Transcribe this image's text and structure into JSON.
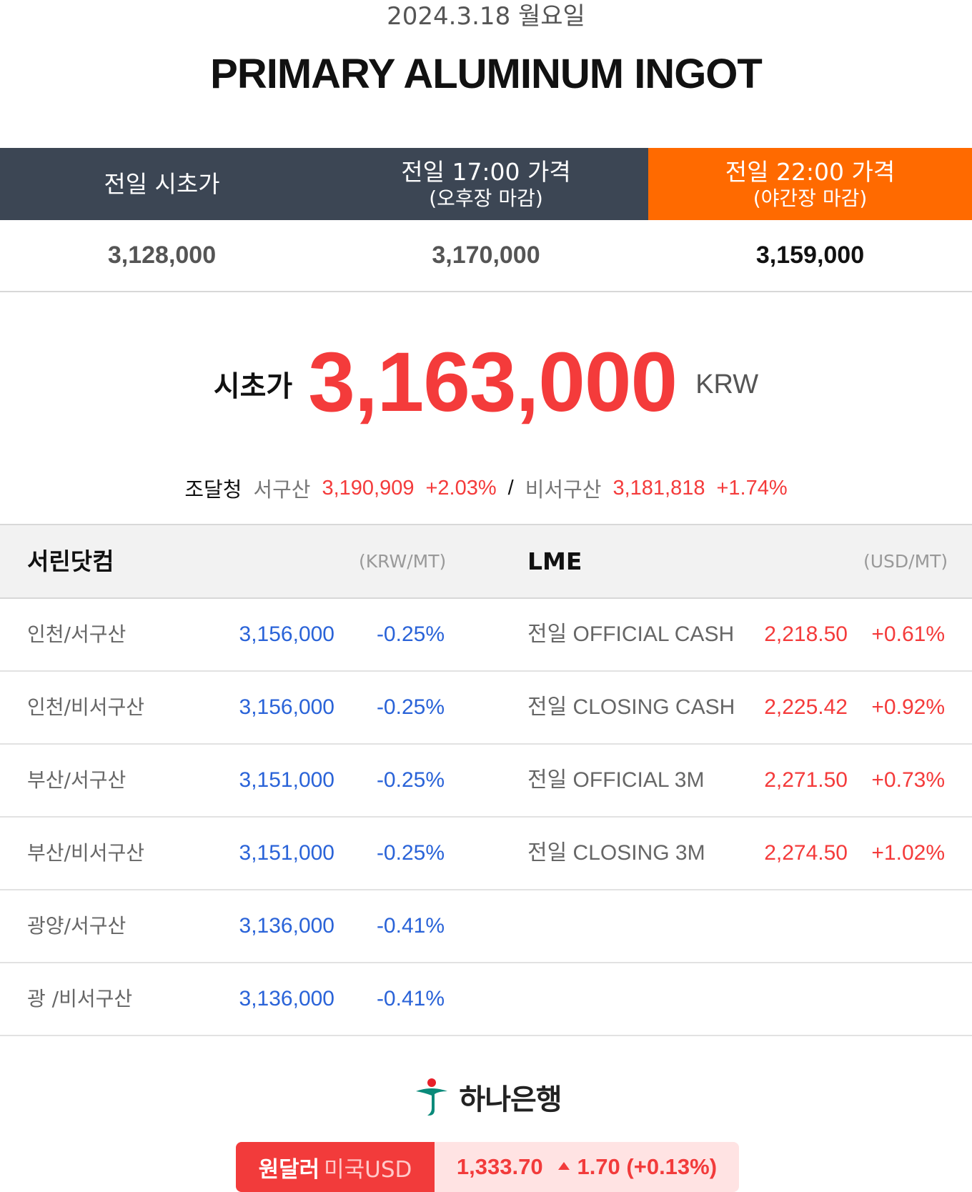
{
  "header": {
    "date": "2024.3.18 월요일",
    "title": "PRIMARY ALUMINUM INGOT"
  },
  "columns": [
    {
      "line1": "전일 시초가",
      "line2": "",
      "price": "3,128,000"
    },
    {
      "line1": "전일 17:00 가격",
      "line2": "(오후장 마감)",
      "price": "3,170,000"
    },
    {
      "line1": "전일 22:00 가격",
      "line2": "(야간장 마감)",
      "price": "3,159,000"
    }
  ],
  "main": {
    "label": "시초가",
    "value": "3,163,000",
    "unit": "KRW"
  },
  "procurement": {
    "label": "조달청",
    "item1_name": "서구산",
    "item1_price": "3,190,909",
    "item1_change": "+2.03%",
    "separator": "/",
    "item2_name": "비서구산",
    "item2_price": "3,181,818",
    "item2_change": "+1.74%"
  },
  "table": {
    "left_title": "서린닷컴",
    "left_unit": "(KRW/MT)",
    "right_title": "LME",
    "right_unit": "(USD/MT)",
    "left_rows": [
      {
        "label": "인천/서구산",
        "price": "3,156,000",
        "change": "-0.25%"
      },
      {
        "label": "인천/비서구산",
        "price": "3,156,000",
        "change": "-0.25%"
      },
      {
        "label": "부산/서구산",
        "price": "3,151,000",
        "change": "-0.25%"
      },
      {
        "label": "부산/비서구산",
        "price": "3,151,000",
        "change": "-0.25%"
      },
      {
        "label": "광양/서구산",
        "price": "3,136,000",
        "change": "-0.41%"
      },
      {
        "label": "광 /비서구산",
        "price": "3,136,000",
        "change": "-0.41%"
      }
    ],
    "right_rows": [
      {
        "label": "전일 OFFICIAL CASH",
        "price": "2,218.50",
        "change": "+0.61%"
      },
      {
        "label": "전일 CLOSING CASH",
        "price": "2,225.42",
        "change": "+0.92%"
      },
      {
        "label": "전일 OFFICIAL 3M",
        "price": "2,271.50",
        "change": "+0.73%"
      },
      {
        "label": "전일 CLOSING 3M",
        "price": "2,274.50",
        "change": "+1.02%"
      }
    ]
  },
  "bank": {
    "name": "하나은행",
    "icon": "hana-bank-logo-icon"
  },
  "fx": {
    "label_main": "원달러",
    "label_sub": "미국USD",
    "rate": "1,333.70",
    "change": "1.70 (+0.13%)",
    "direction_icon": "up-triangle-icon"
  },
  "colors": {
    "header_dark": "#3c4654",
    "header_accent": "#ff6a00",
    "red": "#f43b3b",
    "blue": "#2a63d8"
  }
}
